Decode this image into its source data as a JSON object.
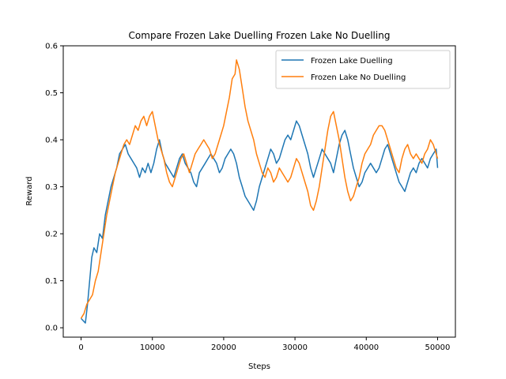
{
  "chart_data": {
    "type": "line",
    "title": "Compare Frozen Lake Duelling Frozen Lake No Duelling",
    "xlabel": "Steps",
    "ylabel": "Reward",
    "xlim": [
      -2500,
      52500
    ],
    "ylim": [
      -0.02,
      0.6
    ],
    "xticks": [
      0,
      10000,
      20000,
      30000,
      40000,
      50000
    ],
    "yticks": [
      0.0,
      0.1,
      0.2,
      0.3,
      0.4,
      0.5,
      0.6
    ],
    "xtick_labels": [
      "0",
      "10000",
      "20000",
      "30000",
      "40000",
      "50000"
    ],
    "ytick_labels": [
      "0.0",
      "0.1",
      "0.2",
      "0.3",
      "0.4",
      "0.5",
      "0.6"
    ],
    "grid": false,
    "legend_position": "top-right",
    "series": [
      {
        "name": "Frozen Lake Duelling",
        "color": "#1f77b4",
        "points": [
          [
            0,
            0.02
          ],
          [
            300,
            0.015
          ],
          [
            600,
            0.01
          ],
          [
            900,
            0.05
          ],
          [
            1200,
            0.1
          ],
          [
            1500,
            0.15
          ],
          [
            1800,
            0.17
          ],
          [
            2200,
            0.16
          ],
          [
            2600,
            0.2
          ],
          [
            3000,
            0.19
          ],
          [
            3400,
            0.24
          ],
          [
            3800,
            0.27
          ],
          [
            4200,
            0.3
          ],
          [
            4600,
            0.32
          ],
          [
            5000,
            0.34
          ],
          [
            5400,
            0.37
          ],
          [
            5800,
            0.38
          ],
          [
            6200,
            0.39
          ],
          [
            6600,
            0.37
          ],
          [
            7000,
            0.36
          ],
          [
            7400,
            0.35
          ],
          [
            7800,
            0.34
          ],
          [
            8200,
            0.32
          ],
          [
            8600,
            0.34
          ],
          [
            9000,
            0.33
          ],
          [
            9400,
            0.35
          ],
          [
            9800,
            0.33
          ],
          [
            10200,
            0.35
          ],
          [
            10600,
            0.38
          ],
          [
            11000,
            0.4
          ],
          [
            11400,
            0.37
          ],
          [
            11800,
            0.35
          ],
          [
            12200,
            0.34
          ],
          [
            12600,
            0.33
          ],
          [
            13000,
            0.32
          ],
          [
            13400,
            0.34
          ],
          [
            13800,
            0.36
          ],
          [
            14200,
            0.37
          ],
          [
            14600,
            0.35
          ],
          [
            15000,
            0.34
          ],
          [
            15400,
            0.33
          ],
          [
            15800,
            0.31
          ],
          [
            16200,
            0.3
          ],
          [
            16600,
            0.33
          ],
          [
            17000,
            0.34
          ],
          [
            17400,
            0.35
          ],
          [
            17800,
            0.36
          ],
          [
            18200,
            0.37
          ],
          [
            18600,
            0.36
          ],
          [
            19000,
            0.35
          ],
          [
            19400,
            0.33
          ],
          [
            19800,
            0.34
          ],
          [
            20200,
            0.36
          ],
          [
            20600,
            0.37
          ],
          [
            21000,
            0.38
          ],
          [
            21400,
            0.37
          ],
          [
            21800,
            0.35
          ],
          [
            22200,
            0.32
          ],
          [
            22600,
            0.3
          ],
          [
            23000,
            0.28
          ],
          [
            23400,
            0.27
          ],
          [
            23800,
            0.26
          ],
          [
            24200,
            0.25
          ],
          [
            24600,
            0.27
          ],
          [
            25000,
            0.3
          ],
          [
            25400,
            0.32
          ],
          [
            25800,
            0.34
          ],
          [
            26200,
            0.36
          ],
          [
            26600,
            0.38
          ],
          [
            27000,
            0.37
          ],
          [
            27400,
            0.35
          ],
          [
            27800,
            0.36
          ],
          [
            28200,
            0.38
          ],
          [
            28600,
            0.4
          ],
          [
            29000,
            0.41
          ],
          [
            29400,
            0.4
          ],
          [
            29800,
            0.42
          ],
          [
            30200,
            0.44
          ],
          [
            30600,
            0.43
          ],
          [
            31000,
            0.41
          ],
          [
            31400,
            0.39
          ],
          [
            31800,
            0.37
          ],
          [
            32200,
            0.34
          ],
          [
            32600,
            0.32
          ],
          [
            33000,
            0.34
          ],
          [
            33400,
            0.36
          ],
          [
            33800,
            0.38
          ],
          [
            34200,
            0.37
          ],
          [
            34600,
            0.36
          ],
          [
            35000,
            0.35
          ],
          [
            35400,
            0.33
          ],
          [
            35800,
            0.36
          ],
          [
            36200,
            0.39
          ],
          [
            36600,
            0.41
          ],
          [
            37000,
            0.42
          ],
          [
            37400,
            0.4
          ],
          [
            37800,
            0.37
          ],
          [
            38200,
            0.34
          ],
          [
            38600,
            0.32
          ],
          [
            39000,
            0.3
          ],
          [
            39400,
            0.31
          ],
          [
            39800,
            0.33
          ],
          [
            40200,
            0.34
          ],
          [
            40600,
            0.35
          ],
          [
            41000,
            0.34
          ],
          [
            41400,
            0.33
          ],
          [
            41800,
            0.34
          ],
          [
            42200,
            0.36
          ],
          [
            42600,
            0.38
          ],
          [
            43000,
            0.39
          ],
          [
            43400,
            0.37
          ],
          [
            43800,
            0.35
          ],
          [
            44200,
            0.33
          ],
          [
            44600,
            0.31
          ],
          [
            45000,
            0.3
          ],
          [
            45400,
            0.29
          ],
          [
            45800,
            0.31
          ],
          [
            46200,
            0.33
          ],
          [
            46600,
            0.34
          ],
          [
            47000,
            0.33
          ],
          [
            47400,
            0.35
          ],
          [
            47800,
            0.36
          ],
          [
            48200,
            0.35
          ],
          [
            48600,
            0.34
          ],
          [
            49000,
            0.36
          ],
          [
            49400,
            0.37
          ],
          [
            49800,
            0.38
          ],
          [
            50000,
            0.34
          ]
        ]
      },
      {
        "name": "Frozen Lake No Duelling",
        "color": "#ff7f0e",
        "points": [
          [
            0,
            0.02
          ],
          [
            400,
            0.03
          ],
          [
            800,
            0.05
          ],
          [
            1200,
            0.06
          ],
          [
            1600,
            0.07
          ],
          [
            2000,
            0.1
          ],
          [
            2400,
            0.12
          ],
          [
            2800,
            0.16
          ],
          [
            3200,
            0.2
          ],
          [
            3600,
            0.24
          ],
          [
            4000,
            0.27
          ],
          [
            4400,
            0.3
          ],
          [
            4800,
            0.33
          ],
          [
            5200,
            0.35
          ],
          [
            5600,
            0.37
          ],
          [
            6000,
            0.39
          ],
          [
            6400,
            0.4
          ],
          [
            6800,
            0.39
          ],
          [
            7200,
            0.41
          ],
          [
            7600,
            0.43
          ],
          [
            8000,
            0.42
          ],
          [
            8400,
            0.44
          ],
          [
            8800,
            0.45
          ],
          [
            9200,
            0.43
          ],
          [
            9600,
            0.45
          ],
          [
            10000,
            0.46
          ],
          [
            10400,
            0.43
          ],
          [
            10800,
            0.4
          ],
          [
            11200,
            0.38
          ],
          [
            11600,
            0.36
          ],
          [
            12000,
            0.33
          ],
          [
            12400,
            0.31
          ],
          [
            12800,
            0.3
          ],
          [
            13200,
            0.32
          ],
          [
            13600,
            0.34
          ],
          [
            14000,
            0.36
          ],
          [
            14400,
            0.37
          ],
          [
            14800,
            0.35
          ],
          [
            15200,
            0.33
          ],
          [
            15600,
            0.35
          ],
          [
            16000,
            0.37
          ],
          [
            16400,
            0.38
          ],
          [
            16800,
            0.39
          ],
          [
            17200,
            0.4
          ],
          [
            17600,
            0.39
          ],
          [
            18000,
            0.38
          ],
          [
            18400,
            0.36
          ],
          [
            18800,
            0.37
          ],
          [
            19200,
            0.39
          ],
          [
            19600,
            0.41
          ],
          [
            20000,
            0.43
          ],
          [
            20400,
            0.46
          ],
          [
            20800,
            0.49
          ],
          [
            21200,
            0.53
          ],
          [
            21600,
            0.54
          ],
          [
            21800,
            0.57
          ],
          [
            22200,
            0.55
          ],
          [
            22600,
            0.51
          ],
          [
            23000,
            0.47
          ],
          [
            23400,
            0.44
          ],
          [
            23800,
            0.42
          ],
          [
            24200,
            0.4
          ],
          [
            24600,
            0.37
          ],
          [
            25000,
            0.35
          ],
          [
            25400,
            0.33
          ],
          [
            25800,
            0.32
          ],
          [
            26200,
            0.34
          ],
          [
            26600,
            0.33
          ],
          [
            27000,
            0.31
          ],
          [
            27400,
            0.32
          ],
          [
            27800,
            0.34
          ],
          [
            28200,
            0.33
          ],
          [
            28600,
            0.32
          ],
          [
            29000,
            0.31
          ],
          [
            29400,
            0.32
          ],
          [
            29800,
            0.34
          ],
          [
            30200,
            0.36
          ],
          [
            30600,
            0.35
          ],
          [
            31000,
            0.33
          ],
          [
            31400,
            0.31
          ],
          [
            31800,
            0.29
          ],
          [
            32200,
            0.26
          ],
          [
            32600,
            0.25
          ],
          [
            33000,
            0.27
          ],
          [
            33400,
            0.3
          ],
          [
            33800,
            0.34
          ],
          [
            34200,
            0.38
          ],
          [
            34600,
            0.42
          ],
          [
            35000,
            0.45
          ],
          [
            35400,
            0.46
          ],
          [
            35800,
            0.43
          ],
          [
            36200,
            0.4
          ],
          [
            36600,
            0.36
          ],
          [
            37000,
            0.32
          ],
          [
            37400,
            0.29
          ],
          [
            37800,
            0.27
          ],
          [
            38200,
            0.28
          ],
          [
            38600,
            0.3
          ],
          [
            39000,
            0.32
          ],
          [
            39400,
            0.35
          ],
          [
            39800,
            0.37
          ],
          [
            40200,
            0.38
          ],
          [
            40600,
            0.39
          ],
          [
            41000,
            0.41
          ],
          [
            41400,
            0.42
          ],
          [
            41800,
            0.43
          ],
          [
            42200,
            0.43
          ],
          [
            42600,
            0.42
          ],
          [
            43000,
            0.4
          ],
          [
            43400,
            0.38
          ],
          [
            43800,
            0.36
          ],
          [
            44200,
            0.34
          ],
          [
            44600,
            0.33
          ],
          [
            45000,
            0.36
          ],
          [
            45400,
            0.38
          ],
          [
            45800,
            0.39
          ],
          [
            46200,
            0.37
          ],
          [
            46600,
            0.36
          ],
          [
            47000,
            0.37
          ],
          [
            47400,
            0.36
          ],
          [
            47800,
            0.35
          ],
          [
            48200,
            0.37
          ],
          [
            48600,
            0.38
          ],
          [
            49000,
            0.4
          ],
          [
            49400,
            0.39
          ],
          [
            49800,
            0.37
          ],
          [
            50000,
            0.36
          ]
        ]
      }
    ]
  }
}
